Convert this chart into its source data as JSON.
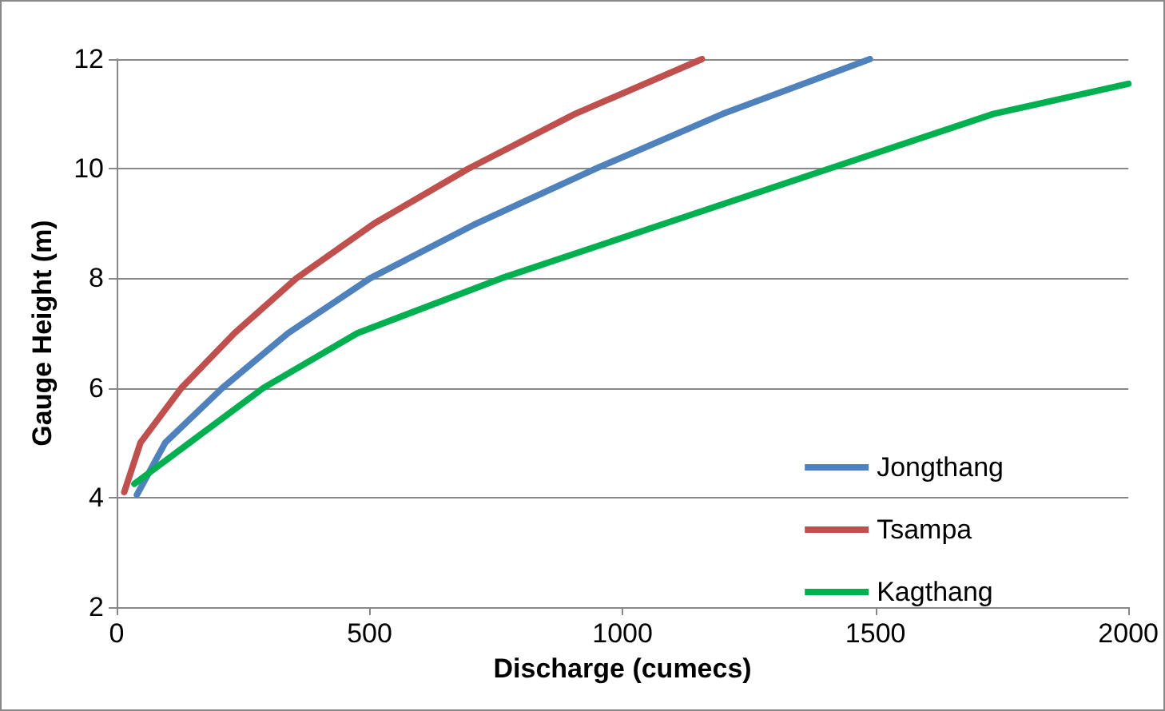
{
  "chart_data": {
    "type": "line",
    "xlabel": "Discharge (cumecs)",
    "ylabel": "Gauge Height (m)",
    "xlim": [
      0,
      2000
    ],
    "xticks": [
      0,
      500,
      1000,
      1500,
      2000
    ],
    "ylim": [
      2,
      12
    ],
    "yticks": [
      2,
      4,
      6,
      8,
      10,
      12
    ],
    "grid": "y",
    "legend": "bottom right",
    "marker": "none",
    "line_style": "solid",
    "series": [
      {
        "name": "Jongthang",
        "color": "#4f81bd",
        "x": [
          40,
          96,
          209,
          339,
          501,
          711,
          947,
          1198,
          1489
        ],
        "values": [
          4.05,
          5,
          6,
          7,
          8,
          9,
          10,
          11,
          12
        ]
      },
      {
        "name": "Tsampa",
        "color": "#c0504d",
        "x": [
          15,
          47,
          128,
          233,
          355,
          509,
          695,
          906,
          1157
        ],
        "values": [
          4.1,
          5,
          6,
          7,
          8,
          9,
          10,
          11,
          12
        ]
      },
      {
        "name": "Kagthang",
        "color": "#00b050",
        "x": [
          35,
          144,
          290,
          476,
          760,
          1084,
          1408,
          1733,
          2000
        ],
        "values": [
          4.25,
          5,
          6,
          7,
          8,
          9,
          10,
          11,
          11.55
        ]
      }
    ]
  }
}
